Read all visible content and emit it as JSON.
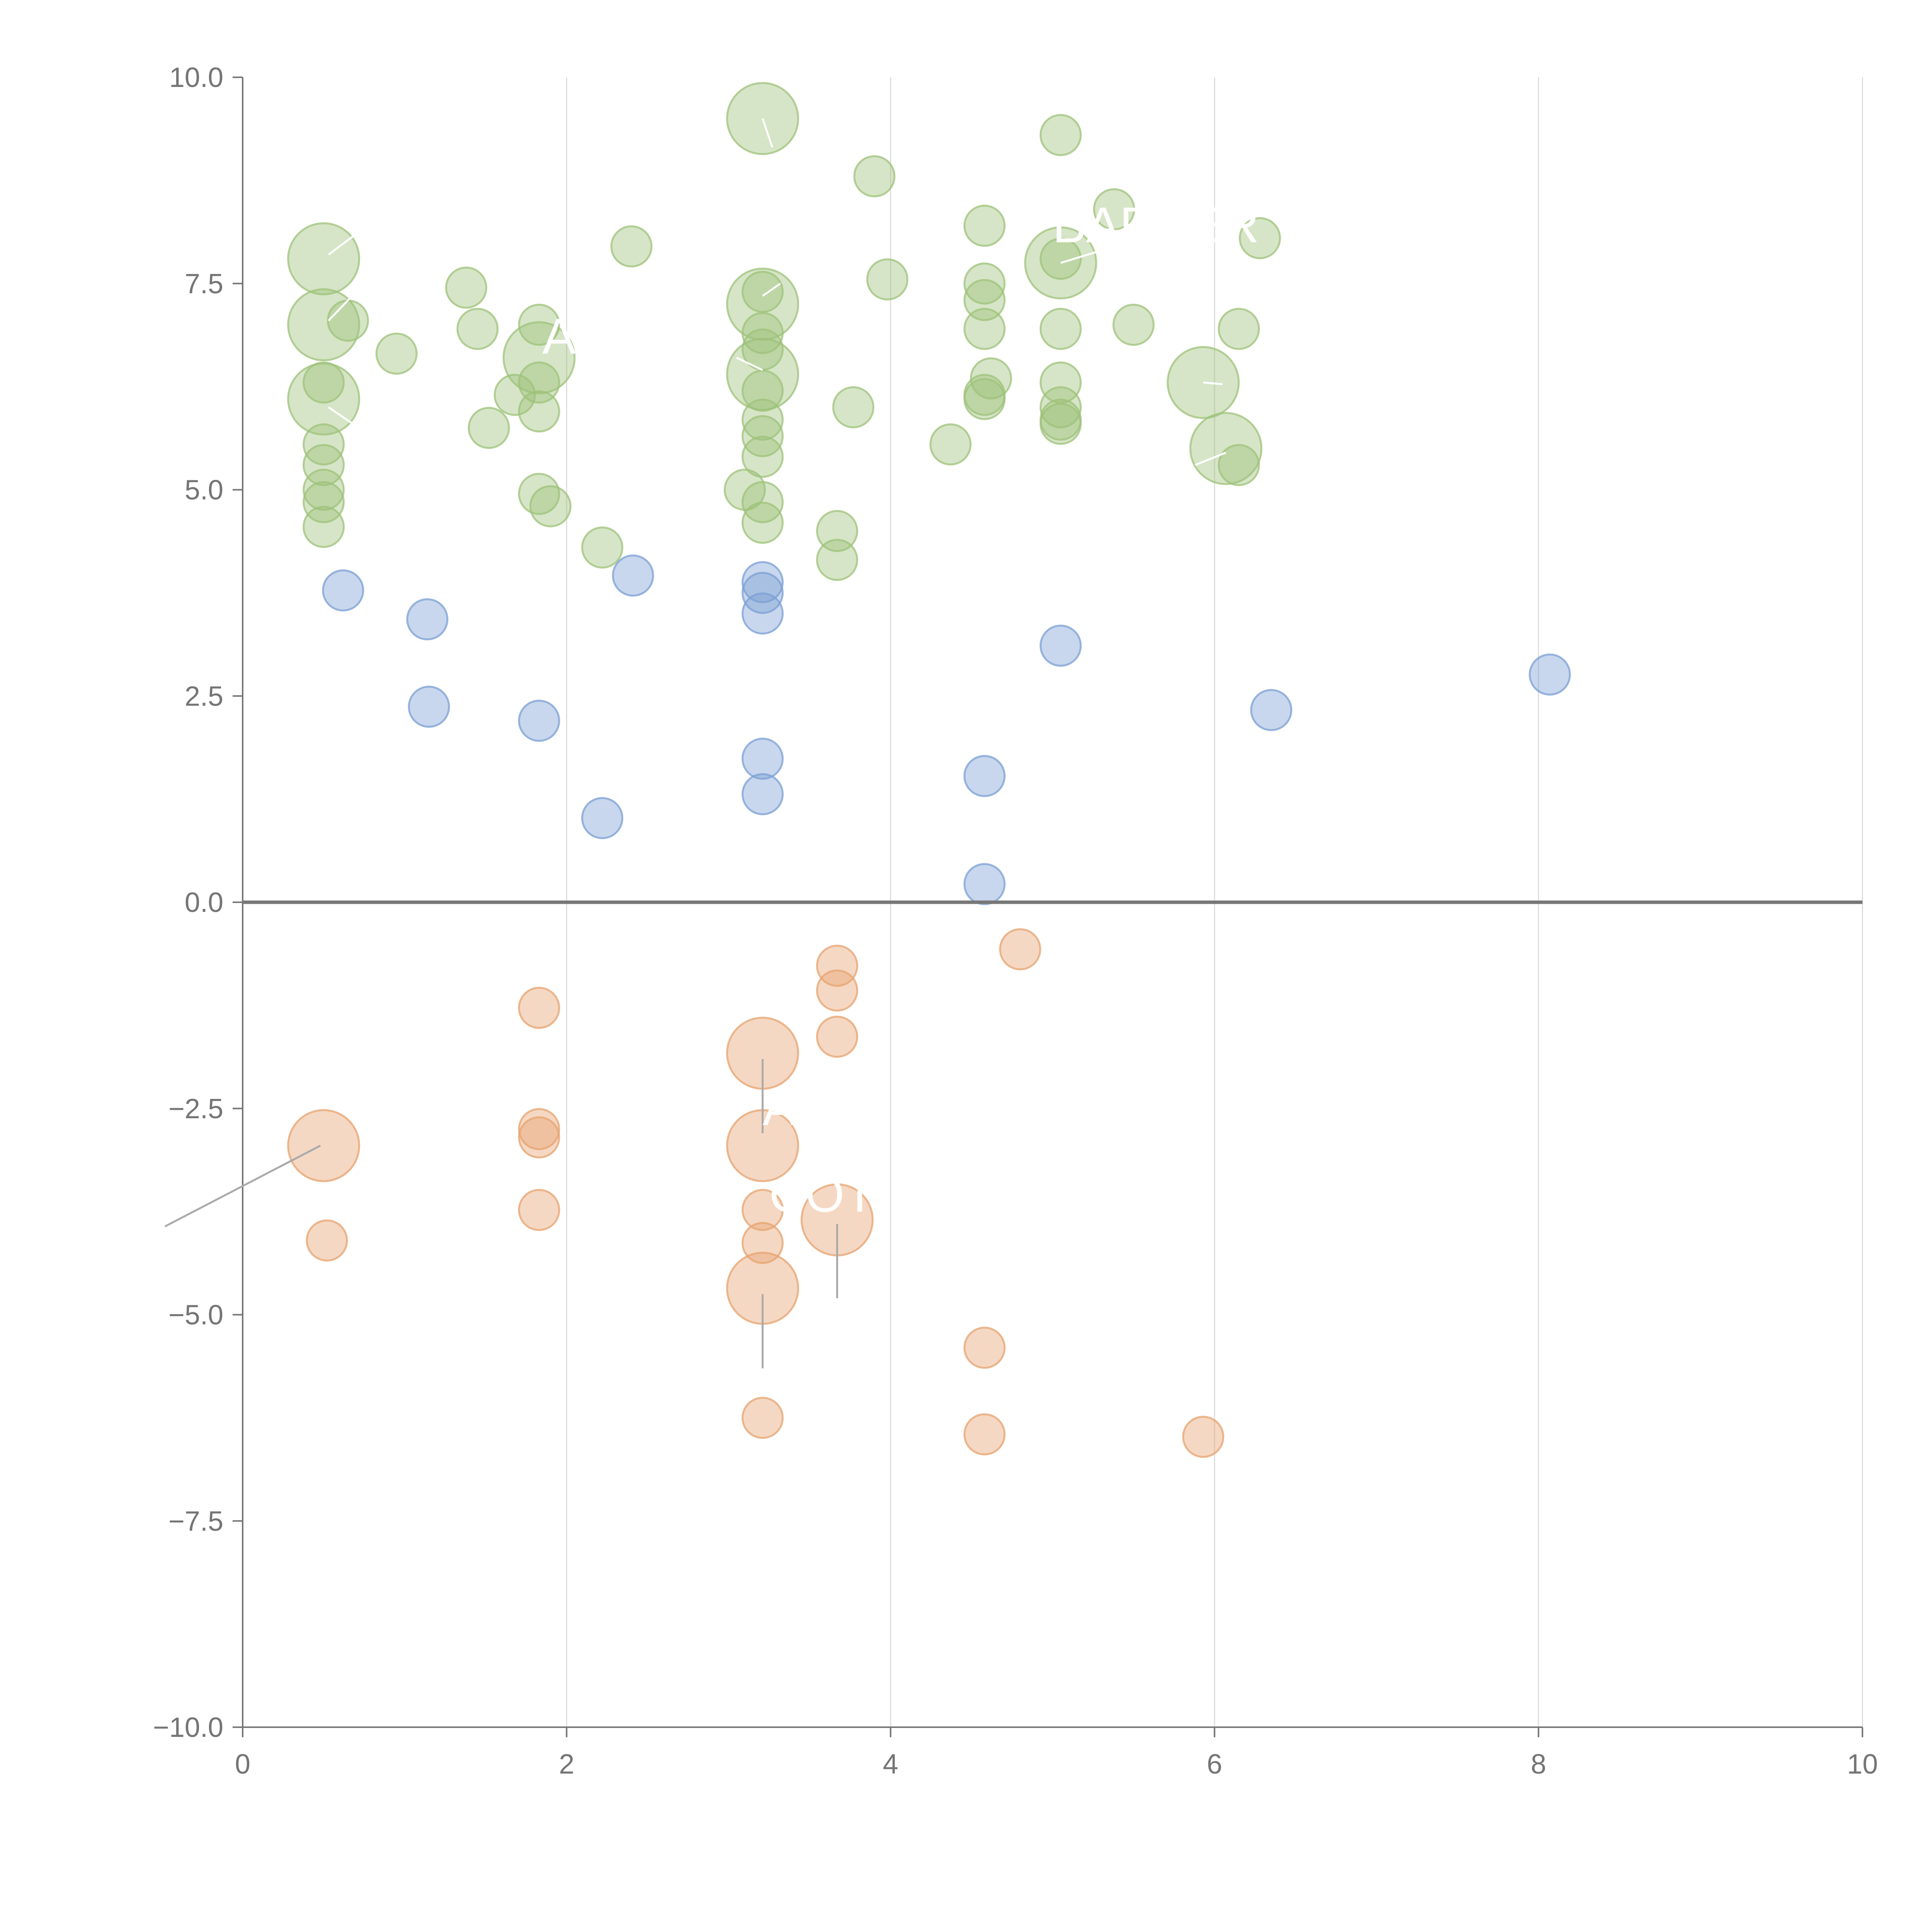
{
  "chart_data": {
    "type": "scatter",
    "title": "",
    "xlabel": "",
    "ylabel": "",
    "xlim": [
      0,
      10
    ],
    "ylim": [
      -10,
      10
    ],
    "grid": "vertical",
    "xticks": [
      "0",
      "2",
      "4",
      "6",
      "8",
      "10"
    ],
    "yticks": [
      "10.0",
      "7.5",
      "5.0",
      "2.5",
      "0.0",
      "−2.5",
      "−5.0",
      "−7.5",
      "−10.0"
    ],
    "xtick_values": [
      0,
      2,
      4,
      6,
      8,
      10
    ],
    "ytick_values": [
      10,
      7.5,
      5,
      2.5,
      0,
      -2.5,
      -5,
      -7.5,
      -10
    ],
    "reference_line_y": 0,
    "colors": {
      "green": "#9dc27a",
      "blue": "#7b9fd4",
      "orange": "#e6a36f"
    },
    "series": [
      {
        "name": "green",
        "color": "#9dc27a",
        "points": [
          {
            "x": 0.5,
            "y": 7.8,
            "s": "large"
          },
          {
            "x": 0.5,
            "y": 7.0,
            "s": "large"
          },
          {
            "x": 0.5,
            "y": 6.1,
            "s": "large"
          },
          {
            "x": 0.65,
            "y": 7.05,
            "s": "small"
          },
          {
            "x": 0.5,
            "y": 6.3,
            "s": "small"
          },
          {
            "x": 0.5,
            "y": 5.55,
            "s": "small"
          },
          {
            "x": 0.5,
            "y": 5.3,
            "s": "small"
          },
          {
            "x": 0.5,
            "y": 5.0,
            "s": "small"
          },
          {
            "x": 0.5,
            "y": 4.85,
            "s": "small"
          },
          {
            "x": 0.5,
            "y": 4.55,
            "s": "small"
          },
          {
            "x": 0.95,
            "y": 6.65,
            "s": "small"
          },
          {
            "x": 1.38,
            "y": 7.45,
            "s": "small"
          },
          {
            "x": 1.45,
            "y": 6.95,
            "s": "small"
          },
          {
            "x": 1.52,
            "y": 5.75,
            "s": "small"
          },
          {
            "x": 1.68,
            "y": 6.15,
            "s": "small"
          },
          {
            "x": 1.83,
            "y": 6.6,
            "s": "large"
          },
          {
            "x": 1.83,
            "y": 7.0,
            "s": "small"
          },
          {
            "x": 1.83,
            "y": 6.3,
            "s": "small"
          },
          {
            "x": 1.83,
            "y": 5.95,
            "s": "small"
          },
          {
            "x": 1.83,
            "y": 4.95,
            "s": "small"
          },
          {
            "x": 1.9,
            "y": 4.8,
            "s": "small"
          },
          {
            "x": 2.22,
            "y": 4.3,
            "s": "small"
          },
          {
            "x": 2.4,
            "y": 7.95,
            "s": "small"
          },
          {
            "x": 3.21,
            "y": 9.5,
            "s": "large"
          },
          {
            "x": 3.21,
            "y": 7.25,
            "s": "large"
          },
          {
            "x": 3.21,
            "y": 6.4,
            "s": "large"
          },
          {
            "x": 3.21,
            "y": 7.4,
            "s": "small"
          },
          {
            "x": 3.21,
            "y": 6.9,
            "s": "small"
          },
          {
            "x": 3.21,
            "y": 6.7,
            "s": "small"
          },
          {
            "x": 3.21,
            "y": 6.2,
            "s": "small"
          },
          {
            "x": 3.21,
            "y": 5.85,
            "s": "small"
          },
          {
            "x": 3.21,
            "y": 5.65,
            "s": "small"
          },
          {
            "x": 3.21,
            "y": 5.4,
            "s": "small"
          },
          {
            "x": 3.21,
            "y": 4.85,
            "s": "small"
          },
          {
            "x": 3.21,
            "y": 4.6,
            "s": "small"
          },
          {
            "x": 3.1,
            "y": 5.0,
            "s": "small"
          },
          {
            "x": 3.67,
            "y": 4.5,
            "s": "small"
          },
          {
            "x": 3.67,
            "y": 4.15,
            "s": "small"
          },
          {
            "x": 3.77,
            "y": 6.0,
            "s": "small"
          },
          {
            "x": 3.9,
            "y": 8.8,
            "s": "small"
          },
          {
            "x": 3.98,
            "y": 7.55,
            "s": "small"
          },
          {
            "x": 4.37,
            "y": 5.55,
            "s": "small"
          },
          {
            "x": 4.58,
            "y": 8.2,
            "s": "small"
          },
          {
            "x": 4.58,
            "y": 7.5,
            "s": "small"
          },
          {
            "x": 4.58,
            "y": 7.3,
            "s": "small"
          },
          {
            "x": 4.58,
            "y": 6.95,
            "s": "small"
          },
          {
            "x": 4.62,
            "y": 6.35,
            "s": "small"
          },
          {
            "x": 4.58,
            "y": 6.15,
            "s": "small"
          },
          {
            "x": 4.58,
            "y": 6.1,
            "s": "small"
          },
          {
            "x": 5.05,
            "y": 9.3,
            "s": "small"
          },
          {
            "x": 5.05,
            "y": 7.75,
            "s": "large"
          },
          {
            "x": 5.05,
            "y": 7.8,
            "s": "small"
          },
          {
            "x": 5.05,
            "y": 6.95,
            "s": "small"
          },
          {
            "x": 5.05,
            "y": 6.3,
            "s": "small"
          },
          {
            "x": 5.05,
            "y": 6.0,
            "s": "small"
          },
          {
            "x": 5.05,
            "y": 5.85,
            "s": "small"
          },
          {
            "x": 5.05,
            "y": 5.8,
            "s": "small"
          },
          {
            "x": 5.38,
            "y": 8.4,
            "s": "small"
          },
          {
            "x": 5.5,
            "y": 7.0,
            "s": "small"
          },
          {
            "x": 5.93,
            "y": 6.3,
            "s": "large"
          },
          {
            "x": 6.07,
            "y": 5.5,
            "s": "large"
          },
          {
            "x": 6.15,
            "y": 5.3,
            "s": "small"
          },
          {
            "x": 6.15,
            "y": 6.95,
            "s": "small"
          },
          {
            "x": 6.28,
            "y": 8.05,
            "s": "small"
          }
        ]
      },
      {
        "name": "blue",
        "color": "#7b9fd4",
        "points": [
          {
            "x": 0.62,
            "y": 3.78,
            "s": "small"
          },
          {
            "x": 1.14,
            "y": 3.43,
            "s": "small"
          },
          {
            "x": 1.15,
            "y": 2.37,
            "s": "small"
          },
          {
            "x": 1.83,
            "y": 2.2,
            "s": "small"
          },
          {
            "x": 2.22,
            "y": 1.02,
            "s": "small"
          },
          {
            "x": 2.41,
            "y": 3.96,
            "s": "small"
          },
          {
            "x": 3.21,
            "y": 3.88,
            "s": "small"
          },
          {
            "x": 3.21,
            "y": 3.75,
            "s": "small"
          },
          {
            "x": 3.21,
            "y": 3.5,
            "s": "small"
          },
          {
            "x": 3.21,
            "y": 1.74,
            "s": "small"
          },
          {
            "x": 3.21,
            "y": 1.31,
            "s": "small"
          },
          {
            "x": 4.58,
            "y": 1.53,
            "s": "small"
          },
          {
            "x": 4.58,
            "y": 0.22,
            "s": "small"
          },
          {
            "x": 5.05,
            "y": 3.11,
            "s": "small"
          },
          {
            "x": 6.35,
            "y": 2.33,
            "s": "small"
          },
          {
            "x": 8.07,
            "y": 2.76,
            "s": "small"
          }
        ]
      },
      {
        "name": "orange",
        "color": "#e6a36f",
        "points": [
          {
            "x": 0.5,
            "y": -2.95,
            "s": "large"
          },
          {
            "x": 0.52,
            "y": -4.1,
            "s": "small"
          },
          {
            "x": 1.83,
            "y": -1.28,
            "s": "small"
          },
          {
            "x": 1.83,
            "y": -2.75,
            "s": "small"
          },
          {
            "x": 1.83,
            "y": -2.85,
            "s": "small"
          },
          {
            "x": 1.83,
            "y": -3.73,
            "s": "small"
          },
          {
            "x": 3.21,
            "y": -1.83,
            "s": "large"
          },
          {
            "x": 3.21,
            "y": -2.95,
            "s": "large"
          },
          {
            "x": 3.21,
            "y": -4.68,
            "s": "large"
          },
          {
            "x": 3.21,
            "y": -3.73,
            "s": "small"
          },
          {
            "x": 3.21,
            "y": -4.13,
            "s": "small"
          },
          {
            "x": 3.21,
            "y": -6.25,
            "s": "small"
          },
          {
            "x": 3.67,
            "y": -3.85,
            "s": "large"
          },
          {
            "x": 3.67,
            "y": -0.77,
            "s": "small"
          },
          {
            "x": 3.67,
            "y": -1.07,
            "s": "small"
          },
          {
            "x": 3.67,
            "y": -1.63,
            "s": "small"
          },
          {
            "x": 4.58,
            "y": -5.4,
            "s": "small"
          },
          {
            "x": 4.58,
            "y": -6.45,
            "s": "small"
          },
          {
            "x": 4.8,
            "y": -0.57,
            "s": "small"
          },
          {
            "x": 5.93,
            "y": -6.48,
            "s": "small"
          }
        ]
      }
    ],
    "annotations": [
      {
        "label": "BARBER",
        "x": 5.0,
        "y": 8.0
      },
      {
        "label": "A",
        "x": 1.85,
        "y": 6.65
      },
      {
        "label": "A",
        "x": 3.21,
        "y": -2.7
      },
      {
        "label": "COT",
        "x": 3.25,
        "y": -3.75
      }
    ],
    "leader_lines": [
      {
        "from": [
          0.48,
          -2.95
        ],
        "to": [
          -0.48,
          -3.93
        ],
        "color": "gray"
      },
      {
        "from": [
          3.21,
          -1.9
        ],
        "to": [
          3.21,
          -2.8
        ],
        "color": "gray"
      },
      {
        "from": [
          3.21,
          -4.75
        ],
        "to": [
          3.21,
          -5.65
        ],
        "color": "gray"
      },
      {
        "from": [
          3.67,
          -3.9
        ],
        "to": [
          3.67,
          -4.8
        ],
        "color": "gray"
      },
      {
        "from": [
          0.53,
          7.85
        ],
        "to": [
          0.7,
          8.1
        ],
        "color": "white"
      },
      {
        "from": [
          0.53,
          7.05
        ],
        "to": [
          0.7,
          7.4
        ],
        "color": "white"
      },
      {
        "from": [
          0.53,
          6.0
        ],
        "to": [
          0.68,
          5.8
        ],
        "color": "white"
      },
      {
        "from": [
          3.21,
          9.5
        ],
        "to": [
          3.27,
          9.15
        ],
        "color": "white"
      },
      {
        "from": [
          3.21,
          7.35
        ],
        "to": [
          3.32,
          7.5
        ],
        "color": "white"
      },
      {
        "from": [
          3.21,
          6.45
        ],
        "to": [
          3.05,
          6.6
        ],
        "color": "white"
      },
      {
        "from": [
          5.05,
          7.75
        ],
        "to": [
          5.3,
          7.9
        ],
        "color": "white"
      },
      {
        "from": [
          5.93,
          6.3
        ],
        "to": [
          6.05,
          6.28
        ],
        "color": "white"
      },
      {
        "from": [
          6.07,
          5.45
        ],
        "to": [
          5.88,
          5.3
        ],
        "color": "white"
      }
    ]
  }
}
